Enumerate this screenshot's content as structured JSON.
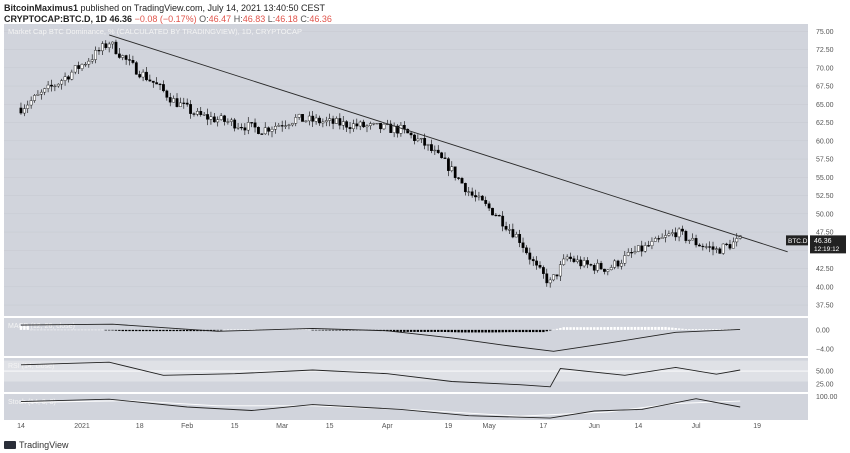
{
  "header": {
    "line1": {
      "author": "BitcoinMaximus1",
      "text": "published on TradingView.com, July 14, 2021 13:40:50 CEST"
    },
    "line2": {
      "symbol": "CRYPTOCAP:BTC.D, 1D",
      "price": "46.36",
      "change": "−0.08 (−0.17%)",
      "o_label": "O:",
      "o": "46.47",
      "h_label": "H:",
      "h": "46.83",
      "l_label": "L:",
      "l": "46.18",
      "c_label": "C:",
      "c": "46.36"
    }
  },
  "footer": {
    "brand": "TradingView"
  },
  "colors": {
    "plot_bg": "#d1d4dc",
    "candle_up": "#ffffff",
    "candle_down": "#000000",
    "trendline": "#2b2b2b",
    "macd_hist_pos": "#ffffff",
    "macd_hist_neg": "#000000",
    "price_tag_bg": "#222222",
    "axis_text": "#555555",
    "down_text": "#e0544b"
  },
  "chart_data": {
    "type": "candlestick",
    "title": "Market Cap BTC Dominance, % (CALCULATED BY TRADINGVIEW), 1D, CRYPTOCAP",
    "ylim": [
      36,
      76
    ],
    "y_ticks": [
      "75.00",
      "72.50",
      "70.00",
      "67.50",
      "65.00",
      "62.50",
      "60.00",
      "57.50",
      "55.00",
      "52.50",
      "50.00",
      "47.50",
      "45.00",
      "42.50",
      "40.00",
      "37.50"
    ],
    "x_ticks": [
      "14",
      "2021",
      "18",
      "Feb",
      "15",
      "Mar",
      "15",
      "Apr",
      "19",
      "May",
      "17",
      "Jun",
      "14",
      "Jul",
      "19"
    ],
    "price_tag": {
      "symbol": "BTC.D",
      "value": "46.36",
      "countdown": "12:19:12"
    },
    "ohlc_path": [
      [
        "2020-12-14",
        64.5
      ],
      [
        "2020-12-25",
        68.0
      ],
      [
        "2021-01-04",
        71.5
      ],
      [
        "2021-01-09",
        73.5
      ],
      [
        "2021-01-15",
        70.5
      ],
      [
        "2021-01-22",
        68.0
      ],
      [
        "2021-01-28",
        65.5
      ],
      [
        "2021-02-04",
        63.5
      ],
      [
        "2021-02-14",
        62.5
      ],
      [
        "2021-02-23",
        61.5
      ],
      [
        "2021-03-05",
        63.0
      ],
      [
        "2021-03-15",
        62.5
      ],
      [
        "2021-03-25",
        62.0
      ],
      [
        "2021-04-05",
        61.5
      ],
      [
        "2021-04-12",
        59.5
      ],
      [
        "2021-04-19",
        56.5
      ],
      [
        "2021-04-26",
        52.5
      ],
      [
        "2021-05-03",
        50.0
      ],
      [
        "2021-05-10",
        46.5
      ],
      [
        "2021-05-15",
        42.5
      ],
      [
        "2021-05-19",
        40.5
      ],
      [
        "2021-05-24",
        44.0
      ],
      [
        "2021-05-29",
        43.0
      ],
      [
        "2021-06-05",
        42.5
      ],
      [
        "2021-06-12",
        44.5
      ],
      [
        "2021-06-19",
        46.0
      ],
      [
        "2021-06-25",
        47.5
      ],
      [
        "2021-07-01",
        46.0
      ],
      [
        "2021-07-07",
        45.0
      ],
      [
        "2021-07-14",
        46.36
      ]
    ],
    "trendline": {
      "from": [
        "2021-01-09",
        74.5
      ],
      "to": [
        "2021-07-28",
        44.8
      ]
    },
    "indicators": [
      {
        "name": "MACD",
        "label": "MACD (12, 26, close)",
        "ylim": [
          -5.5,
          2.5
        ],
        "y_ticks": [
          "0.00",
          "−4.00"
        ],
        "macd_path": [
          [
            "2020-12-14",
            1.0
          ],
          [
            "2021-01-10",
            1.2
          ],
          [
            "2021-02-10",
            -0.3
          ],
          [
            "2021-03-10",
            0.3
          ],
          [
            "2021-04-01",
            -0.2
          ],
          [
            "2021-04-20",
            -1.7
          ],
          [
            "2021-05-05",
            -3.2
          ],
          [
            "2021-05-20",
            -4.5
          ],
          [
            "2021-06-05",
            -2.8
          ],
          [
            "2021-06-25",
            -0.5
          ],
          [
            "2021-07-14",
            0.1
          ]
        ]
      },
      {
        "name": "RSI",
        "label": "RSI (14, close)",
        "ylim": [
          10,
          75
        ],
        "y_ticks": [
          "50.00",
          "25.00"
        ],
        "rsi_path": [
          [
            "2020-12-14",
            62
          ],
          [
            "2021-01-09",
            67
          ],
          [
            "2021-01-25",
            42
          ],
          [
            "2021-02-15",
            45
          ],
          [
            "2021-03-10",
            52
          ],
          [
            "2021-04-01",
            45
          ],
          [
            "2021-04-20",
            30
          ],
          [
            "2021-05-10",
            24
          ],
          [
            "2021-05-19",
            20
          ],
          [
            "2021-05-22",
            55
          ],
          [
            "2021-06-10",
            42
          ],
          [
            "2021-06-25",
            57
          ],
          [
            "2021-07-07",
            44
          ],
          [
            "2021-07-14",
            52
          ]
        ]
      },
      {
        "name": "Stochastic",
        "label": "Stoch (14, 3, 3)",
        "ylim": [
          0,
          110
        ],
        "y_ticks": [
          "100.00"
        ],
        "k_path": [
          [
            "2020-12-14",
            78
          ],
          [
            "2021-01-09",
            88
          ],
          [
            "2021-02-01",
            55
          ],
          [
            "2021-02-20",
            40
          ],
          [
            "2021-03-10",
            65
          ],
          [
            "2021-04-05",
            45
          ],
          [
            "2021-04-25",
            18
          ],
          [
            "2021-05-19",
            8
          ],
          [
            "2021-06-01",
            38
          ],
          [
            "2021-06-15",
            45
          ],
          [
            "2021-07-01",
            90
          ],
          [
            "2021-07-14",
            55
          ]
        ],
        "d_path": [
          [
            "2020-12-14",
            74
          ],
          [
            "2021-01-15",
            82
          ],
          [
            "2021-02-10",
            60
          ],
          [
            "2021-03-10",
            60
          ],
          [
            "2021-04-10",
            42
          ],
          [
            "2021-05-10",
            16
          ],
          [
            "2021-06-05",
            34
          ],
          [
            "2021-06-25",
            70
          ],
          [
            "2021-07-14",
            80
          ]
        ]
      }
    ]
  }
}
